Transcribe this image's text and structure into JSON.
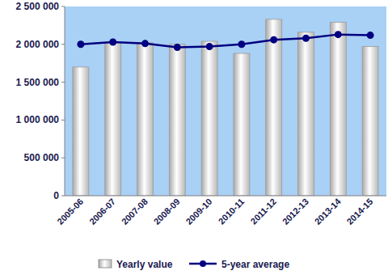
{
  "chart_data": {
    "type": "bar",
    "categories": [
      "2005-06",
      "2006-07",
      "2007-08",
      "2008-09",
      "2009-10",
      "2010-11",
      "2011-12",
      "2012-13",
      "2013-14",
      "2014-15"
    ],
    "series": [
      {
        "name": "Yearly value",
        "type": "bar",
        "color": "#ffffff",
        "values": [
          1700000,
          2020000,
          2020000,
          2000000,
          2040000,
          1880000,
          2330000,
          2160000,
          2290000,
          1970000
        ]
      },
      {
        "name": "5-year average",
        "type": "line",
        "color": "#000080",
        "marker": "circle",
        "values": [
          2000000,
          2030000,
          2010000,
          1960000,
          1970000,
          2000000,
          2060000,
          2080000,
          2130000,
          2120000
        ]
      }
    ],
    "ylim": [
      0,
      2500000
    ],
    "yticks": [
      0,
      {
        "value": 500000,
        "label": "500 000"
      },
      {
        "value": 1000000,
        "label": "1 000 000"
      },
      {
        "value": 1500000,
        "label": "1 500 000"
      },
      {
        "value": 2000000,
        "label": "2 000 000"
      },
      {
        "value": 2500000,
        "label": "2 500 000"
      }
    ],
    "grid": false,
    "legend": "bottom"
  }
}
